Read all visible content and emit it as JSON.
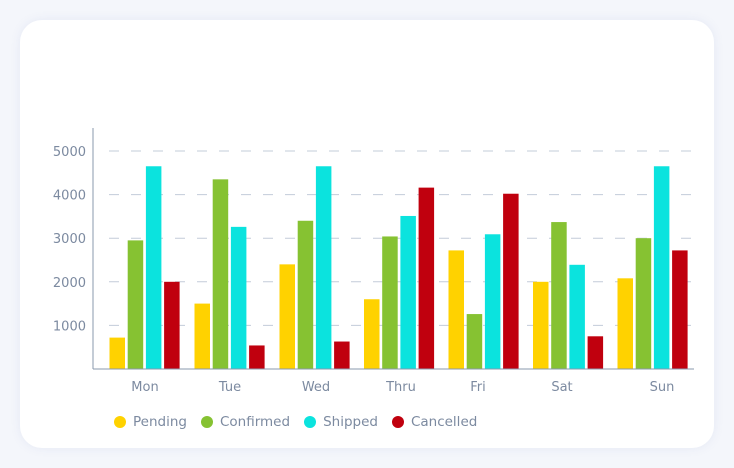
{
  "chart_data": {
    "type": "bar",
    "title": "",
    "xlabel": "",
    "ylabel": "",
    "categories": [
      "Mon",
      "Tue",
      "Wed",
      "Thru",
      "Fri",
      "Sat",
      "Sun"
    ],
    "y_ticks": [
      1000,
      2000,
      3000,
      4000,
      5000
    ],
    "ylim": [
      0,
      5500
    ],
    "grid": true,
    "legend_position": "bottom-left",
    "series": [
      {
        "name": "Pending",
        "color": "#ffd200",
        "values": [
          720,
          1500,
          2400,
          1600,
          2720,
          2000,
          2080
        ]
      },
      {
        "name": "Confirmed",
        "color": "#86c232",
        "values": [
          2950,
          4350,
          3400,
          3040,
          1260,
          3370,
          3000
        ]
      },
      {
        "name": "Shipped",
        "color": "#0be3de",
        "values": [
          4650,
          3260,
          4650,
          3510,
          3090,
          2390,
          4650
        ]
      },
      {
        "name": "Cancelled",
        "color": "#c0000e",
        "values": [
          2000,
          540,
          630,
          4160,
          4020,
          750,
          2720
        ]
      }
    ]
  }
}
